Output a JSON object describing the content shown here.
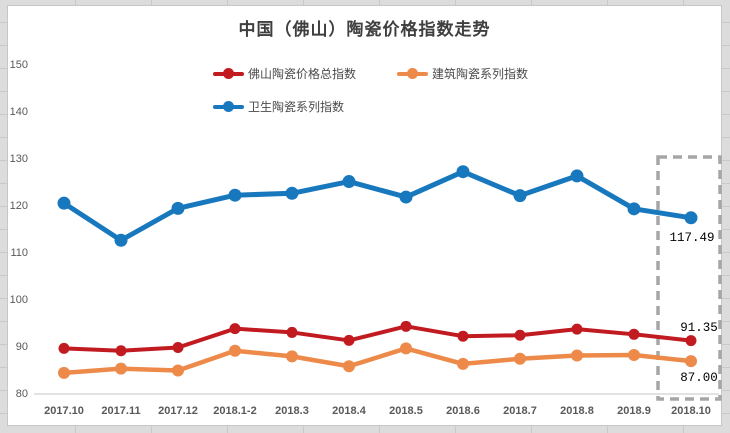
{
  "sheet": {
    "background": "#dcdcdc",
    "gridline_color": "#c9c9c9"
  },
  "chart_data": {
    "type": "line",
    "title": "中国（佛山）陶瓷价格指数走势",
    "categories": [
      "2017.10",
      "2017.11",
      "2017.12",
      "2018.1-2",
      "2018.3",
      "2018.4",
      "2018.5",
      "2018.6",
      "2018.7",
      "2018.8",
      "2018.9",
      "2018.10"
    ],
    "series": [
      {
        "name": "佛山陶瓷价格总指数",
        "color": "#c11a20",
        "values": [
          89.7,
          89.2,
          89.9,
          93.9,
          93.1,
          91.4,
          94.4,
          92.3,
          92.5,
          93.8,
          92.7,
          91.35
        ],
        "end_label": "91.35"
      },
      {
        "name": "建筑陶瓷系列指数",
        "color": "#ed8a4a",
        "values": [
          84.5,
          85.4,
          85.0,
          89.2,
          88.0,
          85.9,
          89.7,
          86.4,
          87.5,
          88.2,
          88.3,
          87.0
        ],
        "end_label": "87.00"
      },
      {
        "name": "卫生陶瓷系列指数",
        "color": "#1878be",
        "values": [
          120.6,
          112.7,
          119.5,
          122.3,
          122.7,
          125.2,
          121.9,
          127.3,
          122.2,
          126.4,
          119.4,
          117.49
        ],
        "end_label": "117.49"
      }
    ],
    "xlabel": "",
    "ylabel": "",
    "ylim": [
      80,
      150
    ],
    "yticks": [
      80,
      90,
      100,
      110,
      120,
      130,
      140,
      150
    ],
    "grid": false,
    "legend_position": "top-inside",
    "axis_line_color": "#d9d9d9",
    "tick_label_color": "#595959",
    "annotations": [
      {
        "type": "dashed-box",
        "category": "2018.10",
        "color": "#a6a6a6",
        "note": "highlights latest month values"
      }
    ]
  }
}
